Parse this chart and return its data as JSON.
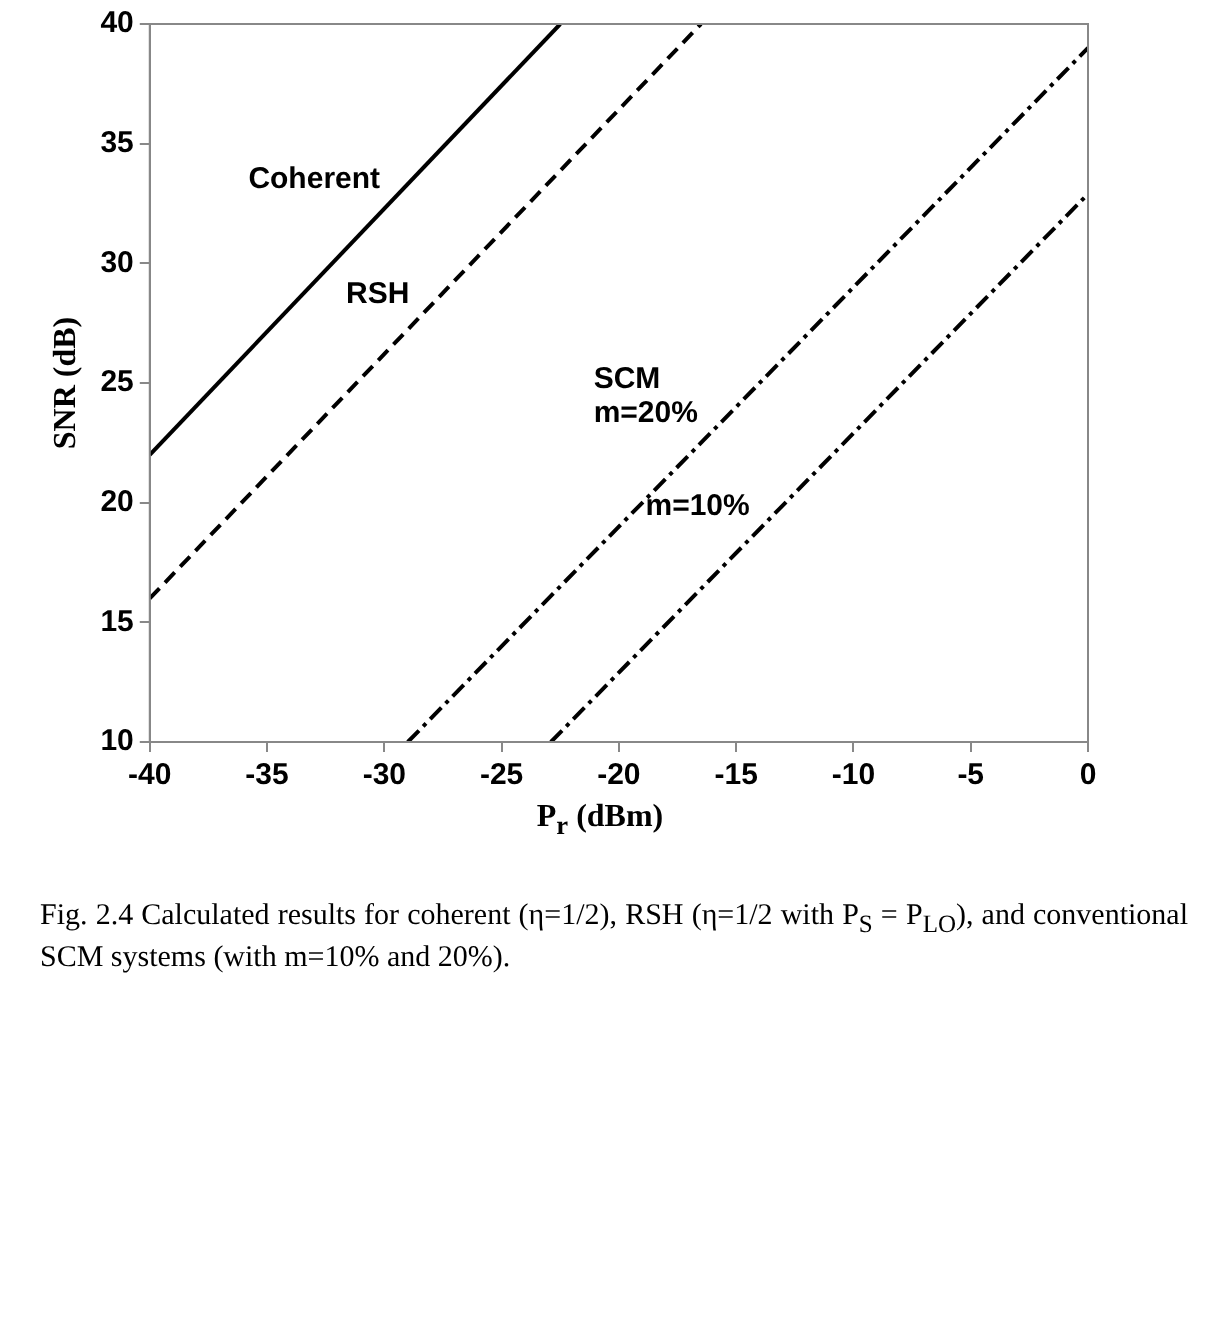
{
  "chart_data": {
    "type": "line",
    "xlabel": "P$_{r}$ (dBm)",
    "ylabel": "SNR (dB)",
    "xlim": [
      -40,
      0
    ],
    "xticks": [
      -40,
      -35,
      -30,
      -25,
      -20,
      -15,
      -10,
      -5,
      0
    ],
    "ylim": [
      10,
      40
    ],
    "yticks": [
      10,
      15,
      20,
      25,
      30,
      35,
      40
    ],
    "grid": false,
    "legend": false,
    "marker": "none",
    "series": [
      {
        "name": "Coherent",
        "color": "#000000",
        "line_style": "solid",
        "x": [
          -40,
          -22.5
        ],
        "values": [
          22,
          40
        ]
      },
      {
        "name": "RSH",
        "color": "#000000",
        "line_style": "dashed",
        "x": [
          -40,
          -16.5
        ],
        "values": [
          16,
          40
        ]
      },
      {
        "name": "SCM\nm=20%",
        "color": "#000000",
        "line_style": "dashdot",
        "x": [
          -29,
          0
        ],
        "values": [
          10,
          39
        ]
      },
      {
        "name": "m=10%",
        "color": "#000000",
        "line_style": "dashdot",
        "x": [
          -22.9,
          0
        ],
        "values": [
          10,
          32.9
        ]
      }
    ],
    "annotations": [
      "Fig. 2.4 Calculated results for coherent (η=1/2), RSH (η=1/2 with P$_{S}$ = P$_{LO}$), and conventional SCM systems (with m=10% and 20%)."
    ]
  }
}
